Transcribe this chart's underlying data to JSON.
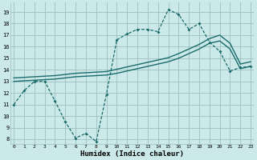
{
  "xlabel": "Humidex (Indice chaleur)",
  "background_color": "#cce9e9",
  "grid_color": "#9bbfbf",
  "line_color": "#1a6b6b",
  "x_ticks": [
    0,
    1,
    2,
    3,
    4,
    5,
    6,
    7,
    8,
    9,
    10,
    11,
    12,
    13,
    14,
    15,
    16,
    17,
    18,
    19,
    20,
    21,
    22,
    23
  ],
  "y_ticks": [
    8,
    9,
    10,
    11,
    12,
    13,
    14,
    15,
    16,
    17,
    18,
    19
  ],
  "xlim": [
    -0.3,
    23.3
  ],
  "ylim": [
    7.6,
    19.8
  ],
  "series1_x": [
    0,
    1,
    2,
    3,
    4,
    5,
    6,
    7,
    8,
    9,
    10,
    11,
    12,
    13,
    14,
    15,
    16,
    17,
    18,
    19,
    20,
    21,
    22,
    23
  ],
  "series1_y": [
    11.0,
    12.2,
    13.0,
    13.0,
    11.3,
    9.5,
    8.1,
    8.5,
    7.8,
    11.9,
    16.6,
    17.1,
    17.5,
    17.5,
    17.3,
    19.2,
    18.8,
    17.5,
    18.0,
    16.4,
    15.6,
    13.9,
    14.2,
    14.3
  ],
  "series2_x": [
    0,
    1,
    2,
    3,
    4,
    5,
    6,
    7,
    8,
    9,
    10,
    11,
    12,
    13,
    14,
    15,
    16,
    17,
    18,
    19,
    20,
    21,
    22,
    23
  ],
  "series2_y": [
    13.0,
    13.05,
    13.1,
    13.15,
    13.2,
    13.3,
    13.4,
    13.45,
    13.5,
    13.55,
    13.7,
    13.9,
    14.1,
    14.3,
    14.5,
    14.7,
    15.0,
    15.4,
    15.8,
    16.3,
    16.5,
    15.8,
    14.1,
    14.3
  ],
  "series3_x": [
    0,
    1,
    2,
    3,
    4,
    5,
    6,
    7,
    8,
    9,
    10,
    11,
    12,
    13,
    14,
    15,
    16,
    17,
    18,
    19,
    20,
    21,
    22,
    23
  ],
  "series3_y": [
    13.3,
    13.35,
    13.4,
    13.45,
    13.5,
    13.6,
    13.7,
    13.75,
    13.8,
    13.85,
    14.05,
    14.25,
    14.45,
    14.65,
    14.85,
    15.05,
    15.4,
    15.8,
    16.2,
    16.7,
    17.0,
    16.3,
    14.5,
    14.7
  ]
}
